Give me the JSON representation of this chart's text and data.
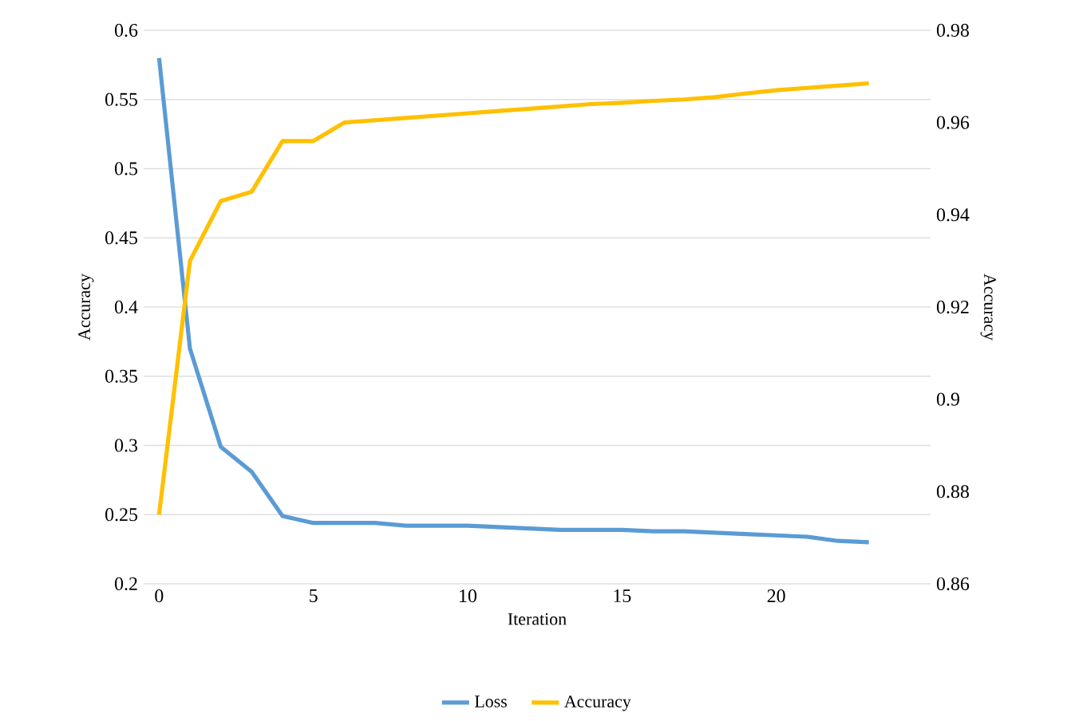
{
  "chart_data": {
    "type": "line",
    "xlabel": "Iteration",
    "ylabel": "Accuracy",
    "y2label": "Accuracy",
    "x": [
      0,
      1,
      2,
      3,
      4,
      5,
      6,
      7,
      8,
      9,
      10,
      11,
      12,
      13,
      14,
      15,
      16,
      17,
      18,
      19,
      20,
      21,
      22,
      23
    ],
    "series": [
      {
        "name": "Loss",
        "color": "#5b9bd5",
        "values": [
          0.58,
          0.37,
          0.299,
          0.281,
          0.249,
          0.244,
          0.244,
          0.244,
          0.242,
          0.242,
          0.242,
          0.241,
          0.24,
          0.239,
          0.239,
          0.239,
          0.238,
          0.238,
          0.237,
          0.236,
          0.235,
          0.234,
          0.231,
          0.23
        ]
      },
      {
        "name": "Accuracy",
        "color": "#ffc000",
        "axis": "y2",
        "values": [
          0.875,
          0.93,
          0.943,
          0.945,
          0.956,
          0.956,
          0.96,
          0.9605,
          0.961,
          0.9615,
          0.962,
          0.9625,
          0.963,
          0.9635,
          0.964,
          0.9643,
          0.9647,
          0.965,
          0.9655,
          0.9663,
          0.967,
          0.9675,
          0.968,
          0.9685
        ]
      }
    ],
    "xlim": [
      -0.5,
      25
    ],
    "xticks": [
      0,
      5,
      10,
      15,
      20
    ],
    "ylim": [
      0.2,
      0.6
    ],
    "yticks": [
      0.2,
      0.25,
      0.3,
      0.35,
      0.4,
      0.45,
      0.5,
      0.55,
      0.6
    ],
    "y2lim": [
      0.86,
      0.98
    ],
    "y2ticks": [
      0.86,
      0.88,
      0.9,
      0.92,
      0.94,
      0.96,
      0.98
    ],
    "grid": "y",
    "legend": "bottom",
    "marker": "none",
    "line_style": "solid"
  }
}
